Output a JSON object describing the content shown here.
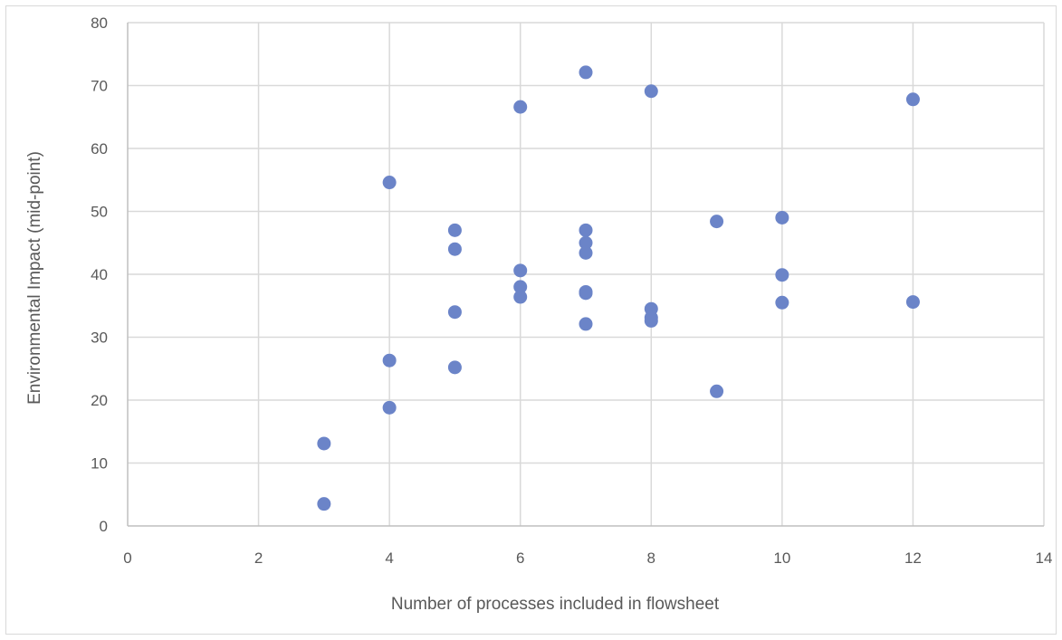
{
  "chart_data": {
    "type": "scatter",
    "title": "",
    "xlabel": "Number of processes included in flowsheet",
    "ylabel": "Environmental Impact (mid-point)",
    "xlim": [
      0,
      14
    ],
    "ylim": [
      0,
      80
    ],
    "x_ticks": [
      0,
      2,
      4,
      6,
      8,
      10,
      12,
      14
    ],
    "y_ticks": [
      0,
      10,
      20,
      30,
      40,
      50,
      60,
      70,
      80
    ],
    "x_tick_labels": [
      "0",
      "2",
      "4",
      "6",
      "8",
      "10",
      "12",
      "14"
    ],
    "y_tick_labels": [
      "0",
      "10",
      "20",
      "30",
      "40",
      "50",
      "60",
      "70",
      "80"
    ],
    "grid": true,
    "legend": "none",
    "marker_color": "#6b84c8",
    "gridline_color": "#d9d9d9",
    "text_color": "#595959",
    "points": [
      {
        "x": 3,
        "y": 13.1
      },
      {
        "x": 3,
        "y": 3.5
      },
      {
        "x": 4,
        "y": 54.6
      },
      {
        "x": 4,
        "y": 26.3
      },
      {
        "x": 4,
        "y": 18.8
      },
      {
        "x": 5,
        "y": 47.0
      },
      {
        "x": 5,
        "y": 44.0
      },
      {
        "x": 5,
        "y": 34.0
      },
      {
        "x": 5,
        "y": 25.2
      },
      {
        "x": 6,
        "y": 66.6
      },
      {
        "x": 6,
        "y": 40.6
      },
      {
        "x": 6,
        "y": 38.0
      },
      {
        "x": 6,
        "y": 36.4
      },
      {
        "x": 7,
        "y": 72.1
      },
      {
        "x": 7,
        "y": 47.0
      },
      {
        "x": 7,
        "y": 45.0
      },
      {
        "x": 7,
        "y": 43.4
      },
      {
        "x": 7,
        "y": 37.2
      },
      {
        "x": 7,
        "y": 37.0
      },
      {
        "x": 7,
        "y": 32.1
      },
      {
        "x": 8,
        "y": 69.1
      },
      {
        "x": 8,
        "y": 34.5
      },
      {
        "x": 8,
        "y": 33.1
      },
      {
        "x": 8,
        "y": 32.6
      },
      {
        "x": 9,
        "y": 48.4
      },
      {
        "x": 9,
        "y": 21.4
      },
      {
        "x": 10,
        "y": 49.0
      },
      {
        "x": 10,
        "y": 39.9
      },
      {
        "x": 10,
        "y": 35.5
      },
      {
        "x": 12,
        "y": 67.8
      },
      {
        "x": 12,
        "y": 35.6
      }
    ]
  }
}
